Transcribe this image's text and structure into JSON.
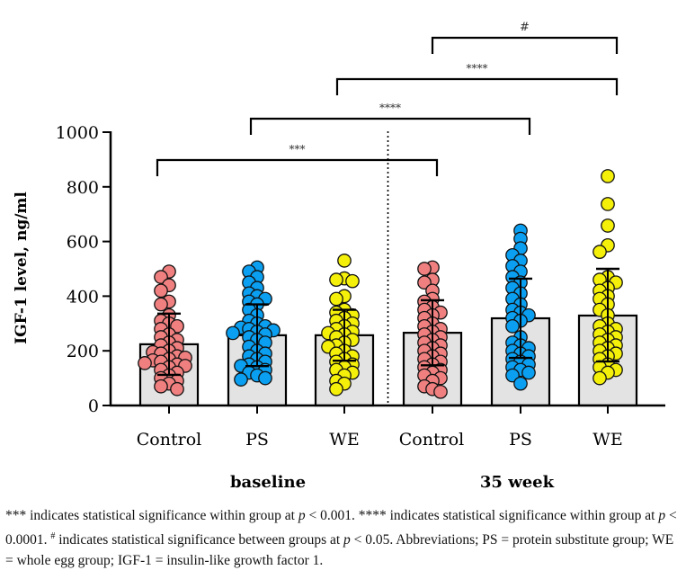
{
  "chart_data": {
    "type": "bar",
    "title": "",
    "xlabel": "",
    "ylabel": "IGF-1 level, ng/ml",
    "ylim": [
      0,
      1000
    ],
    "yticks": [
      0,
      200,
      400,
      600,
      800,
      1000
    ],
    "ytick_labels": [
      "0",
      "200",
      "400",
      "600",
      "800",
      "1000"
    ],
    "grid": false,
    "legend": "none",
    "categories": [
      "Control",
      "PS",
      "WE",
      "Control",
      "PS",
      "WE"
    ],
    "group_labels": [
      {
        "label": "baseline",
        "span": [
          0,
          2
        ]
      },
      {
        "label": "35 week",
        "span": [
          3,
          5
        ]
      }
    ],
    "divider_after_index": 2,
    "bar_fill": "#e3e3e3",
    "point_colors": [
      "#f08080",
      "#0a9ff0",
      "#f5f00a",
      "#f08080",
      "#0a9ff0",
      "#f5f00a"
    ],
    "series": [
      {
        "name": "Mean",
        "values": [
          224,
          257,
          257,
          266,
          319,
          329
        ]
      },
      {
        "name": "SD upper",
        "values": [
          336,
          370,
          350,
          385,
          464,
          500
        ]
      },
      {
        "name": "SD lower",
        "values": [
          112,
          144,
          164,
          147,
          174,
          161
        ]
      }
    ],
    "points": [
      [
        490,
        470,
        440,
        420,
        380,
        370,
        330,
        310,
        300,
        290,
        280,
        260,
        250,
        240,
        230,
        220,
        210,
        200,
        195,
        190,
        180,
        175,
        170,
        165,
        160,
        155,
        150,
        145,
        140,
        130,
        120,
        110,
        100,
        90,
        80,
        70,
        60
      ],
      [
        505,
        490,
        470,
        450,
        430,
        410,
        400,
        390,
        380,
        370,
        350,
        330,
        310,
        300,
        290,
        285,
        280,
        275,
        270,
        265,
        260,
        250,
        240,
        230,
        215,
        200,
        190,
        180,
        170,
        160,
        150,
        145,
        140,
        130,
        120,
        110,
        100,
        95
      ],
      [
        530,
        465,
        460,
        455,
        400,
        390,
        350,
        340,
        330,
        320,
        310,
        300,
        290,
        280,
        270,
        265,
        260,
        250,
        240,
        230,
        220,
        215,
        200,
        190,
        180,
        170,
        160,
        150,
        140,
        130,
        120,
        110,
        90,
        80,
        60
      ],
      [
        505,
        500,
        460,
        450,
        420,
        390,
        380,
        360,
        350,
        340,
        330,
        320,
        300,
        290,
        280,
        270,
        260,
        250,
        240,
        230,
        220,
        210,
        200,
        190,
        180,
        170,
        160,
        150,
        140,
        130,
        120,
        110,
        100,
        90,
        70,
        60,
        50
      ],
      [
        640,
        610,
        575,
        550,
        530,
        510,
        490,
        470,
        450,
        430,
        410,
        390,
        370,
        350,
        340,
        330,
        320,
        310,
        290,
        250,
        230,
        220,
        210,
        200,
        190,
        180,
        170,
        160,
        150,
        140,
        130,
        120,
        110,
        80
      ],
      [
        839,
        737,
        658,
        586,
        562,
        470,
        460,
        450,
        430,
        420,
        400,
        390,
        370,
        350,
        330,
        300,
        290,
        280,
        270,
        260,
        250,
        240,
        230,
        220,
        210,
        200,
        190,
        180,
        170,
        150,
        140,
        130,
        120,
        100
      ]
    ],
    "comparisons": [
      {
        "from": 0,
        "to": 3,
        "label": "***",
        "level": 1
      },
      {
        "from": 1,
        "to": 4,
        "label": "****",
        "level": 2
      },
      {
        "from": 2,
        "to": 5,
        "label": "****",
        "level": 3
      },
      {
        "from": 3,
        "to": 5,
        "label": "#",
        "level": 4
      }
    ]
  },
  "caption": {
    "line1_a": "*** indicates statistical significance within group at ",
    "p": "p",
    "line1_b": " < 0.001. **** indicates statistical significance within group at ",
    "line1_c": " < 0.0001. ",
    "hash": "#",
    "line2_a": " indicates statistical significance between groups at ",
    "line2_b": " < 0.05. Abbreviations; PS = protein substitute group; WE = whole egg group; IGF-1 = insulin-like growth factor 1."
  }
}
